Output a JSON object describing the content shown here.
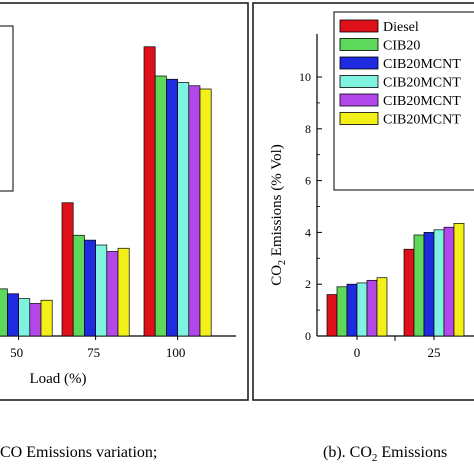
{
  "colors": {
    "series": [
      "#e0101a",
      "#5ed85a",
      "#1f2be0",
      "#7ff2e0",
      "#b348ea",
      "#f2f018"
    ],
    "frame": "#1f1f1f",
    "divider": "#555555"
  },
  "captions": {
    "left": "CO Emissions variation;",
    "right_prefix": "(b). CO",
    "right_sub": "2",
    "right_suffix": " Emissions"
  },
  "chart_data": [
    {
      "type": "bar",
      "categories": [
        "50",
        "75",
        "100"
      ],
      "xlabel": "Load (%)",
      "ylabel": "",
      "ylim": [
        0,
        10
      ],
      "legend": "top-left",
      "series": [
        {
          "name": "",
          "values": [
            1.85,
            4.1,
            8.9
          ]
        },
        {
          "name": "",
          "values": [
            1.45,
            3.1,
            8.0
          ]
        },
        {
          "name": "",
          "values": [
            1.3,
            2.95,
            7.9
          ]
        },
        {
          "name": "",
          "values": [
            1.15,
            2.8,
            7.8
          ]
        },
        {
          "name": "",
          "values": [
            1.0,
            2.6,
            7.7
          ]
        },
        {
          "name": "",
          "values": [
            1.1,
            2.7,
            7.6
          ]
        }
      ]
    },
    {
      "type": "bar",
      "categories": [
        "0",
        "25"
      ],
      "xlabel": "",
      "ylabel_main": "CO",
      "ylabel_sub": "2",
      "ylabel_rest": " Emissions (% Vol)",
      "yticks": [
        "0",
        "2",
        "4",
        "6",
        "8",
        "10"
      ],
      "ylim": [
        0,
        11.5
      ],
      "legend": "top-left",
      "series": [
        {
          "name": "Diesel",
          "values": [
            1.6,
            3.35
          ]
        },
        {
          "name": "CIB20",
          "values": [
            1.9,
            3.9
          ]
        },
        {
          "name": "CIB20MCNT",
          "values": [
            2.0,
            4.0
          ]
        },
        {
          "name": "CIB20MCNT",
          "values": [
            2.05,
            4.1
          ]
        },
        {
          "name": "CIB20MCNT",
          "values": [
            2.15,
            4.2
          ]
        },
        {
          "name": "CIB20MCNT",
          "values": [
            2.25,
            4.35
          ]
        }
      ]
    }
  ]
}
